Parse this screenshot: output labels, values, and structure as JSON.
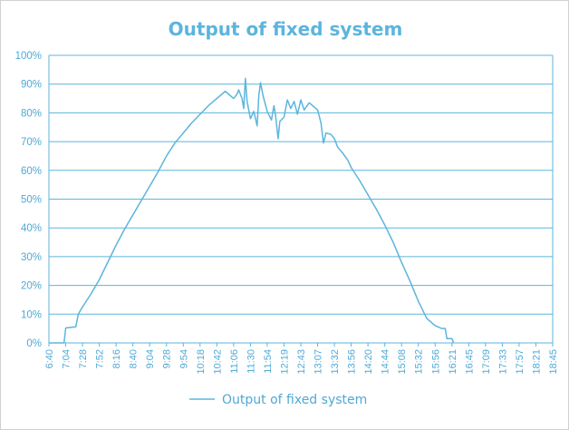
{
  "chart_data": {
    "type": "line",
    "title": "Output of fixed system",
    "xlabel": "",
    "ylabel": "",
    "legend": "bottom",
    "grid": true,
    "ylim": [
      0,
      100
    ],
    "y_tick_labels": [
      "0%",
      "10%",
      "20%",
      "30%",
      "40%",
      "50%",
      "60%",
      "70%",
      "80%",
      "90%",
      "100%"
    ],
    "x_tick_labels": [
      "6:40",
      "7:04",
      "7:28",
      "7:52",
      "8:16",
      "8:40",
      "9:04",
      "9:28",
      "9:54",
      "10:18",
      "10:42",
      "11:06",
      "11:30",
      "11:54",
      "12:19",
      "12:43",
      "13:07",
      "13:32",
      "13:56",
      "14:20",
      "14:44",
      "15:08",
      "15:32",
      "15:56",
      "16:21",
      "16:45",
      "17:09",
      "17:33",
      "17:57",
      "18:21",
      "18:45"
    ],
    "colors": {
      "line": "#5cb5dd",
      "axis_text": "#4ea9d6",
      "grid": "#5cb5dd"
    },
    "series": [
      {
        "name": "Output of fixed system",
        "points": [
          [
            0,
            0
          ],
          [
            0.9,
            0
          ],
          [
            1,
            5.2
          ],
          [
            1.6,
            5.6
          ],
          [
            1.75,
            10
          ],
          [
            2,
            12.5
          ],
          [
            2.5,
            17
          ],
          [
            3,
            22
          ],
          [
            3.5,
            28
          ],
          [
            4,
            34
          ],
          [
            4.5,
            39.5
          ],
          [
            5,
            44.5
          ],
          [
            5.5,
            49.5
          ],
          [
            6,
            54.5
          ],
          [
            6.5,
            59.5
          ],
          [
            7,
            65
          ],
          [
            7.5,
            69.5
          ],
          [
            8,
            73
          ],
          [
            8.5,
            76.5
          ],
          [
            9,
            79.5
          ],
          [
            9.5,
            82.5
          ],
          [
            10,
            85
          ],
          [
            10.5,
            87.5
          ],
          [
            10.8,
            86
          ],
          [
            11,
            85
          ],
          [
            11.2,
            86.5
          ],
          [
            11.3,
            88
          ],
          [
            11.5,
            85
          ],
          [
            11.6,
            81.5
          ],
          [
            11.7,
            92
          ],
          [
            11.8,
            84
          ],
          [
            12,
            78
          ],
          [
            12.2,
            80.5
          ],
          [
            12.4,
            75.5
          ],
          [
            12.5,
            86
          ],
          [
            12.6,
            90.5
          ],
          [
            12.75,
            86
          ],
          [
            13,
            80.5
          ],
          [
            13.25,
            77.5
          ],
          [
            13.4,
            82.5
          ],
          [
            13.5,
            79
          ],
          [
            13.65,
            71
          ],
          [
            13.75,
            77
          ],
          [
            14,
            78.5
          ],
          [
            14.2,
            84.5
          ],
          [
            14.4,
            81.5
          ],
          [
            14.6,
            84
          ],
          [
            14.8,
            79.5
          ],
          [
            15,
            84.5
          ],
          [
            15.2,
            81
          ],
          [
            15.5,
            83.5
          ],
          [
            16,
            81
          ],
          [
            16.2,
            76.5
          ],
          [
            16.35,
            69.5
          ],
          [
            16.5,
            73
          ],
          [
            16.8,
            72.5
          ],
          [
            17,
            71
          ],
          [
            17.2,
            68
          ],
          [
            17.5,
            66
          ],
          [
            17.8,
            63.5
          ],
          [
            18,
            61
          ],
          [
            18.5,
            56.5
          ],
          [
            19,
            51.5
          ],
          [
            19.5,
            46.5
          ],
          [
            20,
            41
          ],
          [
            20.5,
            35
          ],
          [
            21,
            28
          ],
          [
            21.5,
            21.5
          ],
          [
            22,
            14.5
          ],
          [
            22.5,
            8.5
          ],
          [
            23,
            6
          ],
          [
            23.4,
            5
          ],
          [
            23.6,
            5
          ],
          [
            23.7,
            1.5
          ],
          [
            24,
            1.5
          ],
          [
            24.1,
            0
          ]
        ]
      }
    ]
  }
}
